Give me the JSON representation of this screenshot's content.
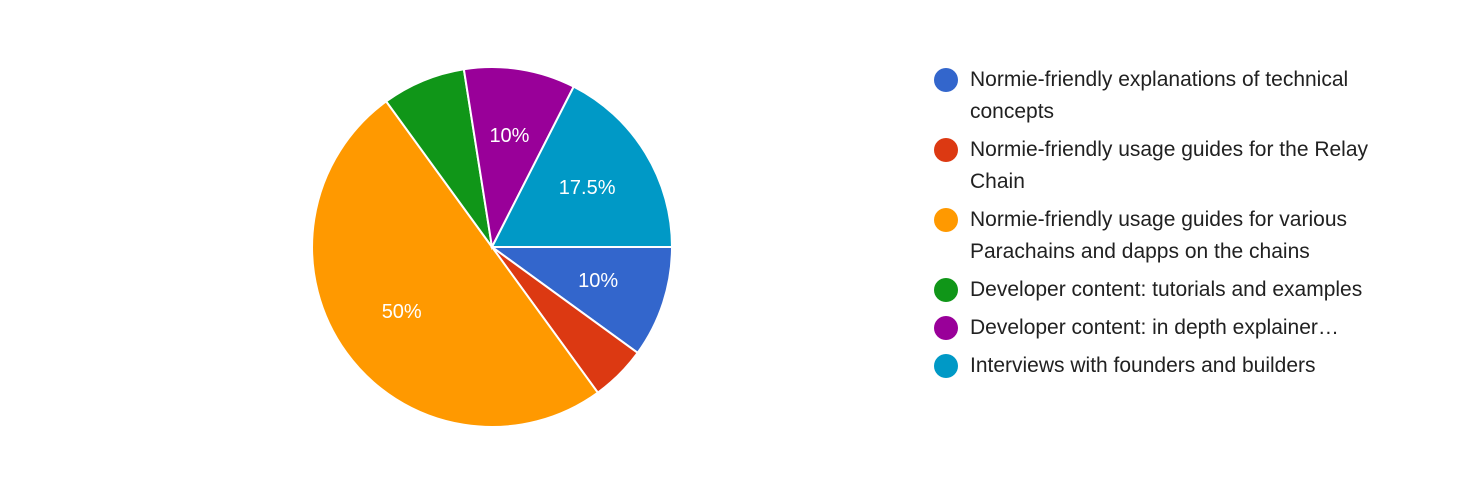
{
  "chart_data": {
    "type": "pie",
    "slices": [
      {
        "label": "Normie-friendly explanations of technical concepts",
        "value": 10,
        "display": "10%",
        "color": "#3366cc"
      },
      {
        "label": "Normie-friendly usage guides for the Relay Chain",
        "value": 5,
        "display": "",
        "color": "#dc3912"
      },
      {
        "label": "Normie-friendly usage guides for various Parachains and dapps on the chains",
        "value": 50,
        "display": "50%",
        "color": "#ff9900"
      },
      {
        "label": "Developer content: tutorials and examples",
        "value": 7.5,
        "display": "",
        "color": "#109618"
      },
      {
        "label": "Developer content: in depth explainer…",
        "value": 10,
        "display": "10%",
        "color": "#990099"
      },
      {
        "label": "Interviews with founders and builders",
        "value": 17.5,
        "display": "17.5%",
        "color": "#0099c6"
      }
    ],
    "legend_position": "right"
  }
}
